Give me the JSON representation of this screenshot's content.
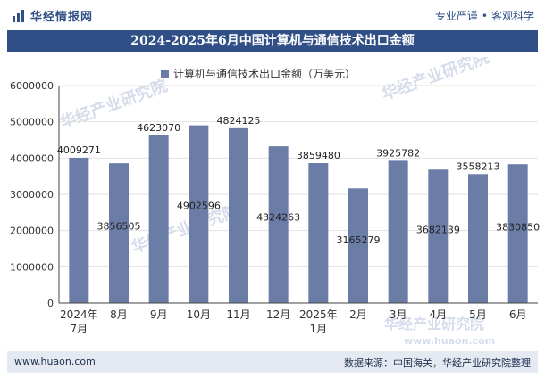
{
  "header": {
    "logo_text": "华经情报网",
    "slogan_left": "专业严谨",
    "slogan_dot": "•",
    "slogan_right": "客观科学"
  },
  "chart_data": {
    "type": "bar",
    "title": "2024-2025年6月中国计算机与通信技术出口金额",
    "series_name": "计算机与通信技术出口金额（万美元）",
    "categories": [
      [
        "2024年",
        "7月"
      ],
      [
        "8月"
      ],
      [
        "9月"
      ],
      [
        "10月"
      ],
      [
        "11月"
      ],
      [
        "12月"
      ],
      [
        "2025年",
        "1月"
      ],
      [
        "2月"
      ],
      [
        "3月"
      ],
      [
        "4月"
      ],
      [
        "5月"
      ],
      [
        "6月"
      ]
    ],
    "values": [
      4009271,
      3856505,
      4623070,
      4902596,
      4824125,
      4324263,
      3859480,
      3165279,
      3925782,
      3682139,
      3558213,
      3830850
    ],
    "labels": [
      "4009271",
      "3856505",
      "4623070",
      "4902596",
      "4824125",
      "4324263",
      "3859480",
      "3165279",
      "3925782",
      "3682139",
      "3558213",
      "3830850"
    ],
    "label_positions": [
      "above",
      "inside",
      "above",
      "inside",
      "above",
      "inside",
      "above",
      "inside",
      "above",
      "inside",
      "above",
      "inside"
    ],
    "ylim": [
      0,
      6000000
    ],
    "yticks": [
      0,
      1000000,
      2000000,
      3000000,
      4000000,
      5000000,
      6000000
    ],
    "ytick_labels": [
      "0",
      "1000000",
      "2000000",
      "3000000",
      "4000000",
      "5000000",
      "6000000"
    ],
    "bar_color": "#6b7da7",
    "legend_position": "top-center",
    "watermark": "华经产业研究院",
    "watermark_url": "www.huaon.com"
  },
  "footer": {
    "website": "www.huaon.com",
    "source": "数据来源：中国海关，华经产业研究院整理"
  }
}
